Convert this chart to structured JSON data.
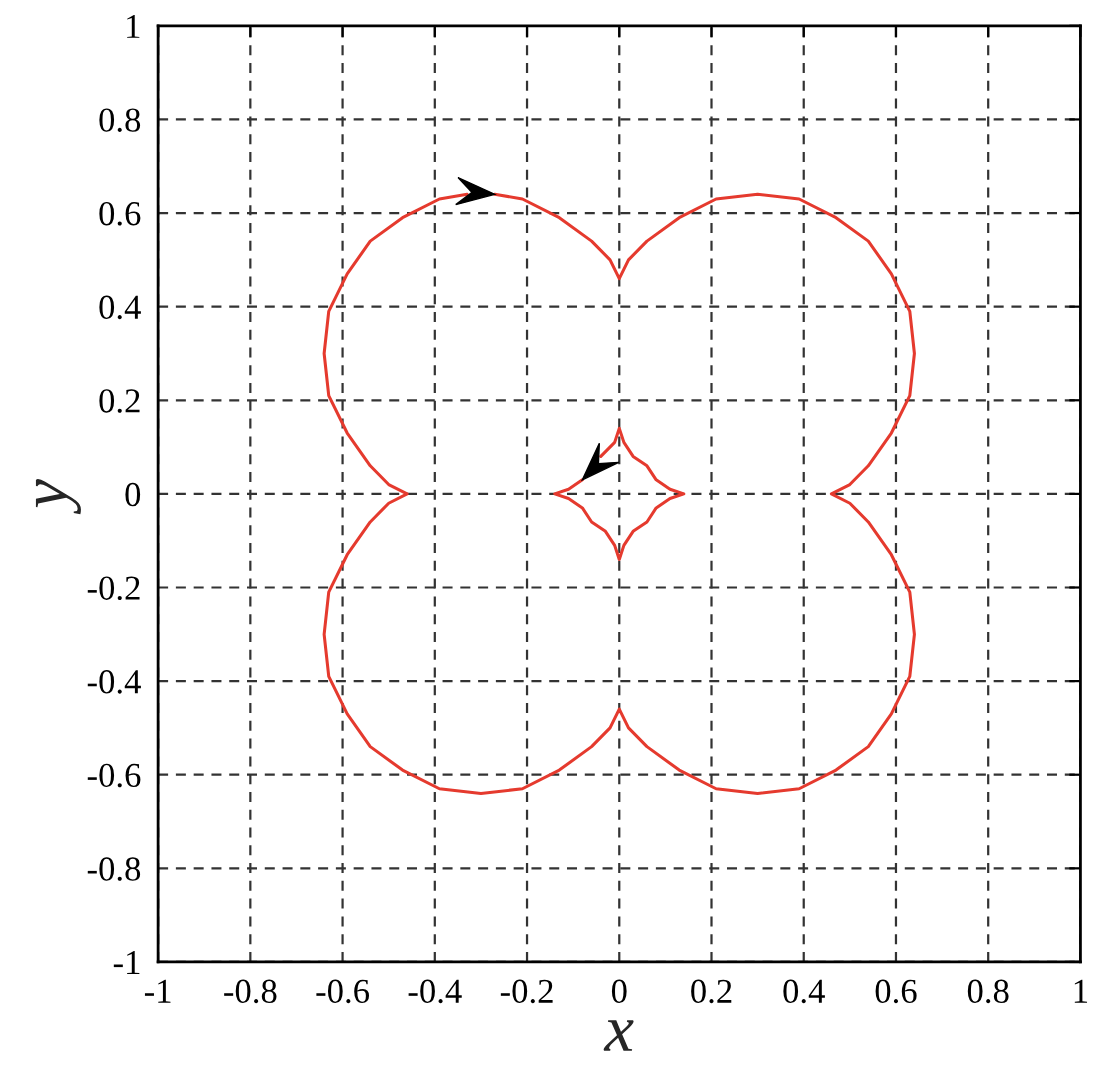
{
  "chart_data": {
    "type": "line",
    "xlabel": "x",
    "ylabel": "y",
    "xlim": [
      -1,
      1
    ],
    "ylim": [
      -1,
      1
    ],
    "xticks": [
      -1,
      -0.8,
      -0.6,
      -0.4,
      -0.2,
      0,
      0.2,
      0.4,
      0.6,
      0.8,
      1
    ],
    "yticks": [
      -1,
      -0.8,
      -0.6,
      -0.4,
      -0.2,
      0,
      0.2,
      0.4,
      0.6,
      0.8,
      1
    ],
    "grid": true,
    "series": [
      {
        "color": "#e53a2e",
        "x": [
          -0.27,
          -0.21,
          -0.13,
          -0.06,
          -0.02,
          0,
          0.02,
          0.06,
          0.13,
          0.21,
          0.3,
          0.39,
          0.47,
          0.54,
          0.59,
          0.63,
          0.64,
          0.63,
          0.59,
          0.54,
          0.5,
          0.46,
          0.5,
          0.54,
          0.59,
          0.63,
          0.64,
          0.63,
          0.59,
          0.54,
          0.47,
          0.39,
          0.3,
          0.21,
          0.13,
          0.06,
          0.02,
          0,
          -0.02,
          -0.06,
          -0.13,
          -0.21,
          -0.3,
          -0.39,
          -0.47,
          -0.54,
          -0.59,
          -0.63,
          -0.64,
          -0.63,
          -0.59,
          -0.54,
          -0.5,
          -0.46,
          -0.5,
          -0.54,
          -0.59,
          -0.63,
          -0.64,
          -0.63,
          -0.59,
          -0.54,
          -0.47,
          -0.39,
          -0.33
        ],
        "values": [
          0.64,
          0.63,
          0.59,
          0.54,
          0.5,
          0.46,
          0.5,
          0.54,
          0.59,
          0.63,
          0.64,
          0.63,
          0.59,
          0.54,
          0.47,
          0.39,
          0.3,
          0.21,
          0.13,
          0.06,
          0.02,
          0,
          -0.02,
          -0.06,
          -0.13,
          -0.21,
          -0.3,
          -0.39,
          -0.47,
          -0.54,
          -0.59,
          -0.63,
          -0.64,
          -0.63,
          -0.59,
          -0.54,
          -0.5,
          -0.46,
          -0.5,
          -0.54,
          -0.59,
          -0.63,
          -0.64,
          -0.63,
          -0.59,
          -0.54,
          -0.47,
          -0.39,
          -0.3,
          -0.21,
          -0.13,
          -0.06,
          -0.02,
          0,
          0.02,
          0.06,
          0.13,
          0.21,
          0.3,
          0.39,
          0.47,
          0.54,
          0.59,
          0.63,
          0.64
        ]
      },
      {
        "color": "#e53a2e",
        "x": [
          -0.08,
          -0.11,
          -0.14,
          -0.11,
          -0.08,
          -0.06,
          -0.03,
          -0.01,
          0,
          0.01,
          0.03,
          0.06,
          0.08,
          0.11,
          0.14,
          0.11,
          0.08,
          0.06,
          0.03,
          0.01,
          0,
          -0.01,
          -0.04
        ],
        "values": [
          0.03,
          0.01,
          0,
          -0.01,
          -0.03,
          -0.06,
          -0.08,
          -0.11,
          -0.14,
          -0.11,
          -0.08,
          -0.06,
          -0.03,
          -0.01,
          0,
          0.01,
          0.03,
          0.06,
          0.08,
          0.11,
          0.14,
          0.11,
          0.08
        ]
      }
    ]
  }
}
